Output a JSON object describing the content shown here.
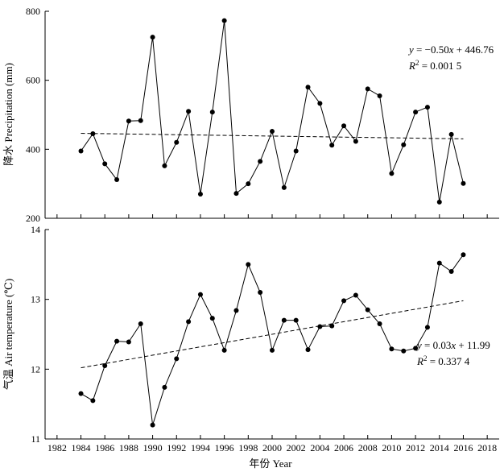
{
  "chart_data": [
    {
      "type": "line",
      "x": [
        1984,
        1985,
        1986,
        1987,
        1988,
        1989,
        1990,
        1991,
        1992,
        1993,
        1994,
        1995,
        1996,
        1997,
        1998,
        1999,
        2000,
        2001,
        2002,
        2003,
        2004,
        2005,
        2006,
        2007,
        2008,
        2009,
        2010,
        2011,
        2012,
        2013,
        2014,
        2015,
        2016
      ],
      "series": [
        {
          "values": [
            395,
            445,
            358,
            312,
            482,
            483,
            725,
            352,
            420,
            510,
            270,
            508,
            773,
            272,
            300,
            365,
            452,
            289,
            395,
            580,
            533,
            412,
            468,
            423,
            575,
            555,
            330,
            413,
            508,
            522,
            247,
            443,
            301
          ]
        }
      ],
      "trend": {
        "slope": -0.5,
        "intercept": 446.76
      },
      "equation": {
        "prefix": "y",
        "rest": " = −0.50",
        "var": "x",
        "tail": " + 446.76"
      },
      "r2": {
        "label": "R",
        "sup": "2",
        "value": " = 0.001 5"
      },
      "ylabel": "降水 Precipitation (mm)",
      "ylim": [
        200,
        800
      ],
      "yticks": [
        200,
        400,
        600,
        800
      ],
      "ytick_labels": [
        "200",
        "400",
        "600",
        "800"
      ]
    },
    {
      "type": "line",
      "x": [
        1984,
        1985,
        1986,
        1987,
        1988,
        1989,
        1990,
        1991,
        1992,
        1993,
        1994,
        1995,
        1996,
        1997,
        1998,
        1999,
        2000,
        2001,
        2002,
        2003,
        2004,
        2005,
        2006,
        2007,
        2008,
        2009,
        2010,
        2011,
        2012,
        2013,
        2014,
        2015,
        2016
      ],
      "series": [
        {
          "values": [
            11.65,
            11.55,
            12.05,
            12.4,
            12.39,
            12.65,
            11.2,
            11.74,
            12.15,
            12.68,
            13.07,
            12.73,
            12.27,
            12.84,
            13.5,
            13.1,
            12.27,
            12.7,
            12.7,
            12.28,
            12.61,
            12.62,
            12.98,
            13.06,
            12.85,
            12.65,
            12.29,
            12.26,
            12.3,
            12.6,
            13.52,
            13.4,
            13.64
          ]
        }
      ],
      "trend": {
        "slope": 0.03,
        "intercept": 11.99
      },
      "equation": {
        "prefix": "y",
        "rest": " = 0.03",
        "var": "x",
        "tail": " + 11.99"
      },
      "r2": {
        "label": "R",
        "sup": "2",
        "value": " = 0.337 4"
      },
      "ylabel": "气温 Air temperature (℃)",
      "ylim": [
        11,
        14
      ],
      "yticks": [
        11,
        12,
        13,
        14
      ],
      "ytick_labels": [
        "11",
        "12",
        "13",
        "14"
      ]
    }
  ],
  "x_axis": {
    "label": "年份 Year",
    "xlim": [
      1981,
      2019
    ],
    "ticks": [
      1982,
      1984,
      1986,
      1988,
      1990,
      1992,
      1994,
      1996,
      1998,
      2000,
      2002,
      2004,
      2006,
      2008,
      2010,
      2012,
      2014,
      2016,
      2018
    ],
    "tick_labels": [
      "1982",
      "1984",
      "1986",
      "1988",
      "1990",
      "1992",
      "1994",
      "1996",
      "1998",
      "2000",
      "2002",
      "2004",
      "2006",
      "2008",
      "2010",
      "2012",
      "2014",
      "2016",
      "2018"
    ]
  },
  "colors": {
    "line": "#000000",
    "trend": "#000000",
    "axis": "#000000"
  }
}
